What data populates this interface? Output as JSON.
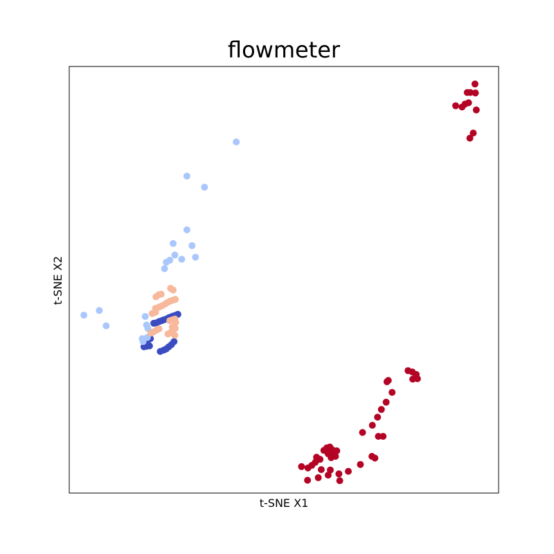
{
  "chart_data": {
    "type": "scatter",
    "title": "flowmeter",
    "xlabel": "t-SNE X1",
    "ylabel": "t-SNE X2",
    "xlim": [
      0,
      100
    ],
    "ylim": [
      0,
      100
    ],
    "ticks_visible": false,
    "grid": false,
    "legend": "none",
    "series": [
      {
        "color": "#3b4cc0",
        "points": [
          [
            19.7,
            39.8
          ],
          [
            20.3,
            39.9
          ],
          [
            20.9,
            40.2
          ],
          [
            21.5,
            40.4
          ],
          [
            22.0,
            40.6
          ],
          [
            22.6,
            40.8
          ],
          [
            23.2,
            41.1
          ],
          [
            23.7,
            41.3
          ],
          [
            24.2,
            41.5
          ],
          [
            24.8,
            41.7
          ],
          [
            25.3,
            41.9
          ],
          [
            18.3,
            35.8
          ],
          [
            18.9,
            36.2
          ],
          [
            21.2,
            33.2
          ],
          [
            22.0,
            33.5
          ],
          [
            22.6,
            33.8
          ],
          [
            23.2,
            34.3
          ],
          [
            23.8,
            34.8
          ],
          [
            24.4,
            35.5
          ],
          [
            17.4,
            34.3
          ],
          [
            18.0,
            34.4
          ],
          [
            18.7,
            34.5
          ]
        ]
      },
      {
        "color": "#aac7fd",
        "points": [
          [
            38.9,
            82.3
          ],
          [
            27.4,
            74.3
          ],
          [
            31.5,
            71.7
          ],
          [
            27.4,
            61.7
          ],
          [
            24.2,
            58.5
          ],
          [
            28.6,
            58.0
          ],
          [
            24.6,
            55.8
          ],
          [
            29.4,
            55.3
          ],
          [
            26.2,
            54.8
          ],
          [
            22.6,
            54.1
          ],
          [
            23.4,
            54.6
          ],
          [
            22.2,
            52.6
          ],
          [
            18.0,
            39.4
          ],
          [
            17.7,
            41.4
          ],
          [
            18.3,
            38.6
          ],
          [
            18.2,
            36.5
          ],
          [
            3.4,
            41.7
          ],
          [
            7.0,
            42.8
          ],
          [
            8.6,
            39.2
          ],
          [
            17.2,
            35.5
          ],
          [
            17.0,
            36.2
          ]
        ]
      },
      {
        "color": "#f7b89c",
        "points": [
          [
            20.2,
            46.0
          ],
          [
            20.8,
            46.5
          ],
          [
            21.4,
            46.6
          ],
          [
            23.6,
            48.0
          ],
          [
            24.2,
            47.6
          ],
          [
            20.1,
            43.3
          ],
          [
            20.9,
            43.6
          ],
          [
            21.6,
            43.9
          ],
          [
            22.3,
            44.3
          ],
          [
            22.9,
            44.7
          ],
          [
            23.5,
            45.0
          ],
          [
            24.1,
            45.2
          ],
          [
            24.7,
            45.4
          ],
          [
            19.3,
            42.1
          ],
          [
            20.1,
            42.4
          ],
          [
            23.4,
            40.4
          ],
          [
            24.0,
            40.6
          ],
          [
            24.6,
            40.8
          ],
          [
            24.8,
            40.0
          ],
          [
            24.0,
            38.9
          ],
          [
            24.7,
            38.6
          ],
          [
            23.0,
            37.3
          ],
          [
            23.6,
            37.6
          ],
          [
            24.6,
            37.0
          ],
          [
            19.0,
            37.5
          ],
          [
            19.6,
            37.8
          ],
          [
            20.3,
            38.2
          ],
          [
            20.9,
            38.5
          ]
        ]
      },
      {
        "color": "#b40426",
        "points": [
          [
            94.5,
            95.9
          ],
          [
            92.7,
            93.9
          ],
          [
            93.4,
            93.9
          ],
          [
            94.6,
            93.8
          ],
          [
            90.0,
            90.8
          ],
          [
            91.5,
            90.5
          ],
          [
            92.2,
            91.2
          ],
          [
            93.0,
            91.5
          ],
          [
            94.8,
            89.8
          ],
          [
            94.1,
            84.4
          ],
          [
            93.3,
            83.2
          ],
          [
            78.9,
            28.7
          ],
          [
            79.9,
            28.4
          ],
          [
            80.8,
            27.8
          ],
          [
            81.1,
            26.8
          ],
          [
            80.0,
            26.7
          ],
          [
            74.0,
            26.1
          ],
          [
            74.3,
            26.4
          ],
          [
            75.2,
            23.6
          ],
          [
            73.8,
            21.3
          ],
          [
            72.7,
            19.6
          ],
          [
            71.8,
            17.8
          ],
          [
            70.6,
            15.9
          ],
          [
            68.3,
            14.2
          ],
          [
            72.0,
            13.3
          ],
          [
            73.1,
            13.3
          ],
          [
            62.3,
            9.9
          ],
          [
            61.2,
            10.2
          ],
          [
            60.7,
            10.8
          ],
          [
            60.0,
            10.6
          ],
          [
            59.3,
            10.0
          ],
          [
            60.3,
            9.2
          ],
          [
            61.5,
            9.1
          ],
          [
            62.0,
            8.6
          ],
          [
            61.0,
            8.3
          ],
          [
            57.6,
            8.4
          ],
          [
            57.3,
            7.2
          ],
          [
            58.4,
            7.9
          ],
          [
            56.5,
            6.5
          ],
          [
            55.6,
            5.9
          ],
          [
            54.1,
            6.2
          ],
          [
            58.7,
            5.5
          ],
          [
            60.8,
            5.4
          ],
          [
            60.3,
            4.2
          ],
          [
            58.0,
            3.6
          ],
          [
            55.5,
            3.0
          ],
          [
            63.0,
            2.9
          ],
          [
            62.8,
            4.5
          ],
          [
            67.8,
            6.7
          ],
          [
            65.0,
            5.1
          ],
          [
            70.5,
            8.6
          ],
          [
            71.2,
            8.2
          ]
        ]
      }
    ]
  }
}
